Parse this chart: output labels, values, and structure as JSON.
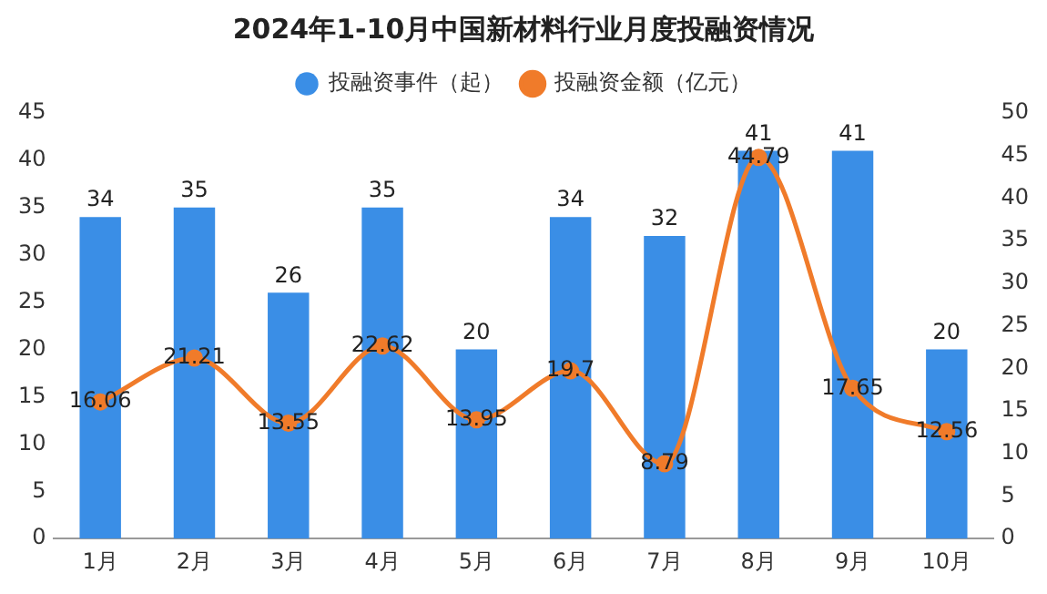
{
  "chart_data": {
    "type": "bar",
    "title": "2024年1-10月中国新材料行业月度投融资情况",
    "categories": [
      "1月",
      "2月",
      "3月",
      "4月",
      "5月",
      "6月",
      "7月",
      "8月",
      "9月",
      "10月"
    ],
    "series": [
      {
        "name": "投融资事件（起）",
        "color": "#3a8ee6",
        "values": [
          34,
          35,
          26,
          35,
          20,
          34,
          32,
          41,
          41,
          20
        ]
      },
      {
        "name": "投融资金额（亿元）",
        "type": "line",
        "axis": "y2",
        "color": "#f07b2a",
        "values": [
          16.06,
          21.21,
          13.55,
          22.62,
          13.95,
          19.7,
          8.79,
          44.79,
          17.65,
          12.56
        ]
      }
    ],
    "ylim": [
      0,
      45
    ],
    "yticks": [
      0,
      5,
      10,
      15,
      20,
      25,
      30,
      35,
      40,
      45
    ],
    "y2lim": [
      0,
      50
    ],
    "y2ticks": [
      0,
      5,
      10,
      15,
      20,
      25,
      30,
      35,
      40,
      45,
      50
    ],
    "legend": "top",
    "grid": false,
    "marker": "circle",
    "data_labels": true
  }
}
